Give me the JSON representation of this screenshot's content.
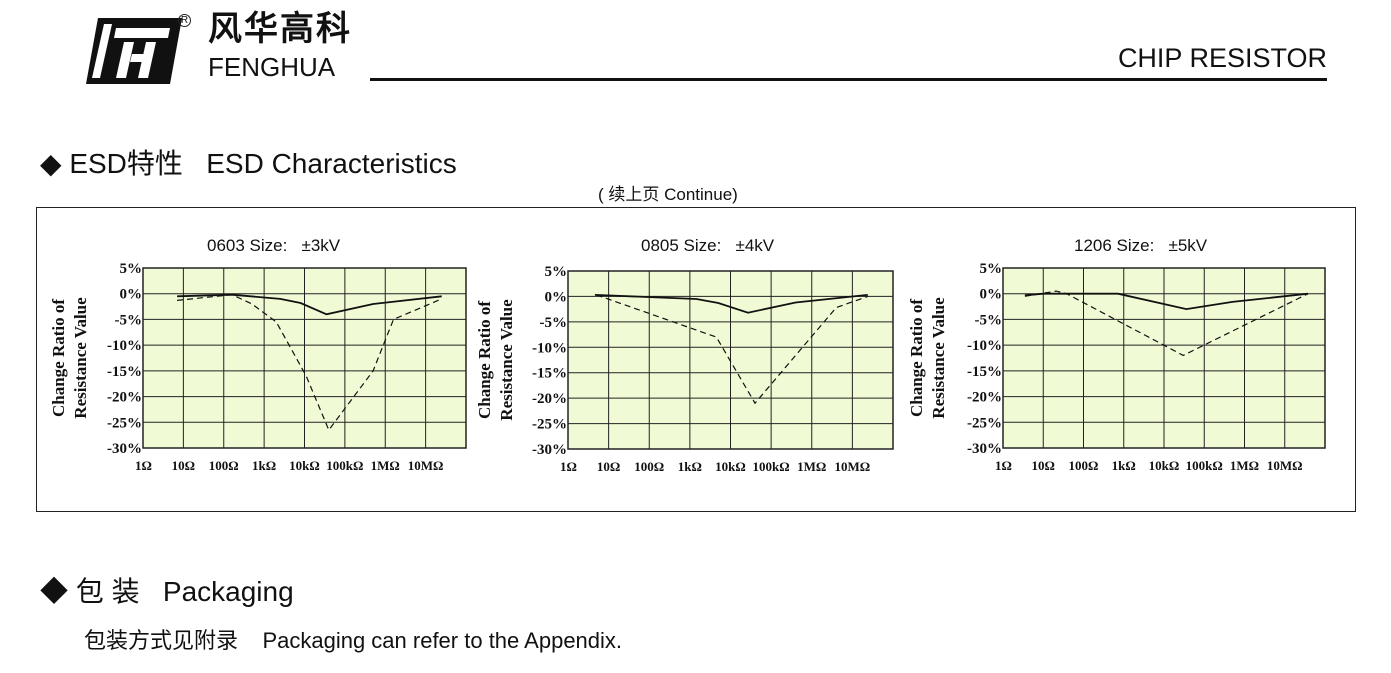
{
  "header": {
    "logo_cn": "风华高科",
    "logo_en": "FENGHUA",
    "registered_mark": "R",
    "doc_title": "CHIP RESISTOR"
  },
  "esd_section": {
    "bullet": "◆",
    "heading": "ESD特性   ESD Characteristics",
    "continue_note": "( 续上页 Continue)"
  },
  "packaging_section": {
    "bullet": "◆",
    "heading": "包 装   Packaging",
    "text": "包装方式见附录    Packaging can refer to the Appendix."
  },
  "colors": {
    "plot_bg": "#f0fbd6",
    "grid": "#222222",
    "line": "#111111"
  },
  "chart_data": [
    {
      "type": "line",
      "title": "0603 Size:   ±3kV",
      "ylabel": [
        "Change Ratio of",
        "Resistance Value"
      ],
      "x_scale": "log",
      "x_tick_labels": [
        "1Ω",
        "10Ω",
        "100Ω",
        "1kΩ",
        "10kΩ",
        "100kΩ",
        "1MΩ",
        "10MΩ"
      ],
      "x_ticks_ohm": [
        1,
        10,
        100,
        1000,
        10000,
        100000,
        1000000,
        10000000
      ],
      "xlim_ohm": [
        1,
        100000000
      ],
      "y_tick_labels": [
        "5%",
        "0%",
        "-5%",
        "-10%",
        "-15%",
        "-20%",
        "-25%",
        "-30%"
      ],
      "ylim": [
        -30,
        5
      ],
      "grid": true,
      "series": [
        {
          "style": "solid",
          "x_ohm": [
            7,
            160,
            2500,
            8000,
            35000,
            500000,
            25000000
          ],
          "y": [
            -0.5,
            -0.2,
            -1,
            -1.8,
            -4,
            -2,
            -0.5
          ]
        },
        {
          "style": "dashed",
          "x_ohm": [
            7,
            160,
            500,
            2000,
            11000,
            40000,
            500000,
            1600000,
            25000000
          ],
          "y": [
            -1.3,
            -0.2,
            -2,
            -5.5,
            -16,
            -26.5,
            -15,
            -5,
            -1
          ]
        }
      ]
    },
    {
      "type": "line",
      "title": "0805 Size:   ±4kV",
      "ylabel": [
        "Change Ratio of",
        "Resistance Value"
      ],
      "x_scale": "log",
      "x_tick_labels": [
        "1Ω",
        "10Ω",
        "100Ω",
        "1kΩ",
        "10kΩ",
        "100kΩ",
        "1MΩ",
        "10MΩ"
      ],
      "x_ticks_ohm": [
        1,
        10,
        100,
        1000,
        10000,
        100000,
        1000000,
        10000000
      ],
      "xlim_ohm": [
        1,
        100000000
      ],
      "y_tick_labels": [
        "5%",
        "0%",
        "-5%",
        "-10%",
        "-15%",
        "-20%",
        "-25%",
        "-30%"
      ],
      "ylim": [
        -30,
        5
      ],
      "grid": true,
      "series": [
        {
          "style": "solid",
          "x_ohm": [
            4.6,
            1450,
            5000,
            27000,
            400000,
            24000000
          ],
          "y": [
            0.3,
            -0.5,
            -1.3,
            -3.2,
            -1.2,
            0.3
          ]
        },
        {
          "style": "dashed",
          "x_ohm": [
            5,
            4500,
            40000,
            4000000,
            24000000
          ],
          "y": [
            0.3,
            -8,
            -21,
            -2.2,
            0
          ]
        }
      ]
    },
    {
      "type": "line",
      "title": "1206 Size:   ±5kV",
      "ylabel": [
        "Change Ratio of",
        "Resistance Value"
      ],
      "x_scale": "log",
      "x_tick_labels": [
        "1Ω",
        "10Ω",
        "100Ω",
        "1kΩ",
        "10kΩ",
        "100kΩ",
        "1MΩ",
        "10MΩ"
      ],
      "x_ticks_ohm": [
        1,
        10,
        100,
        1000,
        10000,
        100000,
        1000000,
        10000000
      ],
      "xlim_ohm": [
        1,
        100000000
      ],
      "y_tick_labels": [
        "5%",
        "0%",
        "-5%",
        "-10%",
        "-15%",
        "-20%",
        "-25%",
        "-30%"
      ],
      "ylim": [
        -30,
        5
      ],
      "grid": true,
      "series": [
        {
          "style": "solid",
          "x_ohm": [
            3.5,
            10,
            720,
            36000,
            500000,
            38000000
          ],
          "y": [
            -0.3,
            0,
            0,
            -3,
            -1.6,
            0
          ]
        },
        {
          "style": "dashed",
          "x_ohm": [
            3.5,
            21,
            38,
            30000,
            38000000
          ],
          "y": [
            -0.5,
            0.5,
            0,
            -12,
            0
          ]
        }
      ]
    }
  ]
}
